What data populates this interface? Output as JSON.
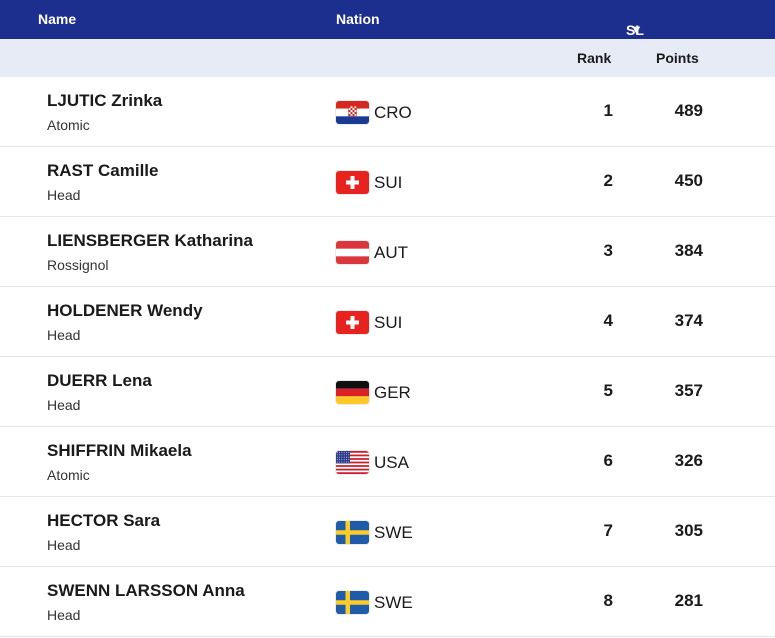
{
  "header": {
    "name": "Name",
    "nation": "Nation",
    "discipline": "SL",
    "sort_indicator": "▼"
  },
  "subheader": {
    "rank": "Rank",
    "points": "Points"
  },
  "rows": [
    {
      "athlete": "LJUTIC Zrinka",
      "brand": "Atomic",
      "flag": "croatia-flag",
      "nation": "CRO",
      "rank": "1",
      "points": "489"
    },
    {
      "athlete": "RAST Camille",
      "brand": "Head",
      "flag": "switzerland-flag",
      "nation": "SUI",
      "rank": "2",
      "points": "450"
    },
    {
      "athlete": "LIENSBERGER Katharina",
      "brand": "Rossignol",
      "flag": "austria-flag",
      "nation": "AUT",
      "rank": "3",
      "points": "384"
    },
    {
      "athlete": "HOLDENER Wendy",
      "brand": "Head",
      "flag": "switzerland-flag",
      "nation": "SUI",
      "rank": "4",
      "points": "374"
    },
    {
      "athlete": "DUERR Lena",
      "brand": "Head",
      "flag": "germany-flag",
      "nation": "GER",
      "rank": "5",
      "points": "357"
    },
    {
      "athlete": "SHIFFRIN Mikaela",
      "brand": "Atomic",
      "flag": "usa-flag",
      "nation": "USA",
      "rank": "6",
      "points": "326"
    },
    {
      "athlete": "HECTOR Sara",
      "brand": "Head",
      "flag": "sweden-flag",
      "nation": "SWE",
      "rank": "7",
      "points": "305"
    },
    {
      "athlete": "SWENN LARSSON Anna",
      "brand": "Head",
      "flag": "sweden-flag",
      "nation": "SWE",
      "rank": "8",
      "points": "281"
    }
  ],
  "colors": {
    "header_bg": "#1d2f8e",
    "subheader_bg": "#e6ebf6"
  }
}
